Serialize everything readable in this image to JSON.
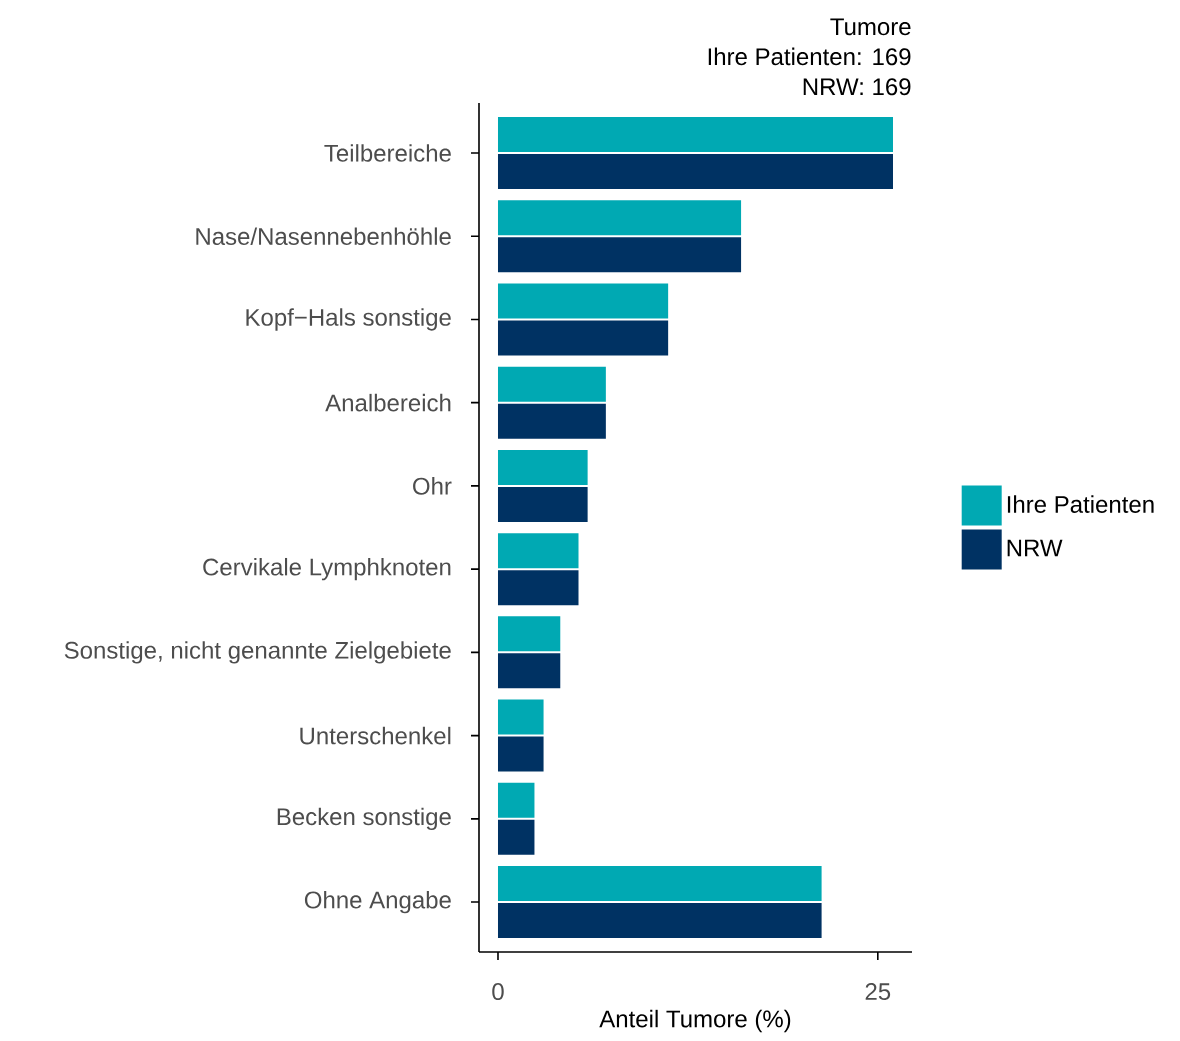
{
  "chart_data": {
    "type": "bar",
    "orientation": "horizontal",
    "title": "Tumore",
    "subtitle": "Ihre Patienten: 169",
    "annotations": [
      "NRW: 169"
    ],
    "xlabel": "Anteil Tumore (%)",
    "categories": [
      "Teilbereiche",
      "Nase/Nasennebenhöhle",
      "Kopf−Hals sonstige",
      "Analbereich",
      "Ohr",
      "Cervikale Lymphknoten",
      "Sonstige, nicht genannte Zielgebiete",
      "Unterschenkel",
      "Becken sonstige",
      "Ohne Angabe"
    ],
    "series": [
      {
        "name": "Ihre Patienten",
        "color": "#00a9b3",
        "values": [
          26.0,
          16.0,
          11.2,
          7.1,
          5.9,
          5.3,
          4.1,
          3.0,
          2.4,
          21.3
        ]
      },
      {
        "name": "NRW",
        "color": "#003263",
        "values": [
          26.0,
          16.0,
          11.2,
          7.1,
          5.9,
          5.3,
          4.1,
          3.0,
          2.4,
          21.3
        ]
      }
    ],
    "xlim": [
      -1.25,
      27.25
    ],
    "xticks": [
      0,
      25
    ],
    "grid": false,
    "legend": "right"
  }
}
